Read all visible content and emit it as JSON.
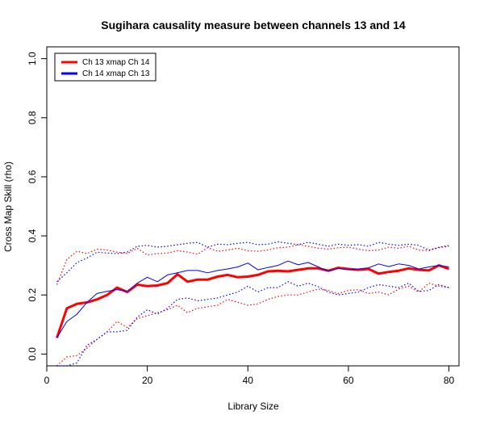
{
  "chart_data": {
    "type": "line",
    "title": "Sugihara causality measure between channels  13 and 14",
    "xlabel": "Library Size",
    "ylabel": "Cross Map Skill (rho)",
    "xlim": [
      0,
      82
    ],
    "ylim": [
      -0.04,
      1.04
    ],
    "xticks": [
      0,
      20,
      40,
      60,
      80
    ],
    "yticks": [
      0.0,
      0.2,
      0.4,
      0.6,
      0.8,
      1.0
    ],
    "grid": false,
    "legend": "top-left",
    "x": [
      2,
      4,
      6,
      8,
      10,
      12,
      14,
      16,
      18,
      20,
      22,
      24,
      26,
      28,
      30,
      32,
      34,
      36,
      38,
      40,
      42,
      44,
      46,
      48,
      50,
      52,
      54,
      56,
      58,
      60,
      62,
      64,
      66,
      68,
      70,
      72,
      74,
      76,
      78,
      80
    ],
    "series": [
      {
        "name": "Ch 13 xmap Ch 14",
        "color": "#ff0000",
        "role": "mean",
        "values": [
          0.055,
          0.155,
          0.17,
          0.175,
          0.185,
          0.2,
          0.225,
          0.21,
          0.235,
          0.23,
          0.232,
          0.24,
          0.27,
          0.245,
          0.252,
          0.252,
          0.262,
          0.268,
          0.26,
          0.262,
          0.268,
          0.28,
          0.282,
          0.28,
          0.285,
          0.29,
          0.29,
          0.282,
          0.292,
          0.288,
          0.285,
          0.288,
          0.272,
          0.278,
          0.282,
          0.29,
          0.285,
          0.283,
          0.3,
          0.288
        ]
      },
      {
        "name": "Ch 14  xmap Ch 13",
        "color": "#0000ff",
        "role": "mean",
        "values": [
          0.055,
          0.11,
          0.135,
          0.175,
          0.205,
          0.212,
          0.218,
          0.212,
          0.24,
          0.26,
          0.245,
          0.268,
          0.275,
          0.283,
          0.283,
          0.275,
          0.283,
          0.288,
          0.295,
          0.308,
          0.285,
          0.293,
          0.3,
          0.315,
          0.302,
          0.31,
          0.295,
          0.28,
          0.29,
          0.285,
          0.288,
          0.292,
          0.305,
          0.296,
          0.305,
          0.3,
          0.288,
          0.295,
          0.3,
          0.295
        ]
      },
      {
        "color": "#ff0000",
        "role": "upper",
        "values": [
          0.235,
          0.32,
          0.348,
          0.34,
          0.355,
          0.352,
          0.345,
          0.34,
          0.358,
          0.335,
          0.34,
          0.342,
          0.35,
          0.345,
          0.338,
          0.36,
          0.348,
          0.352,
          0.358,
          0.35,
          0.348,
          0.352,
          0.36,
          0.362,
          0.37,
          0.365,
          0.358,
          0.355,
          0.36,
          0.362,
          0.355,
          0.35,
          0.352,
          0.362,
          0.358,
          0.365,
          0.352,
          0.35,
          0.362,
          0.368
        ]
      },
      {
        "color": "#ff0000",
        "role": "lower",
        "values": [
          -0.06,
          -0.01,
          -0.005,
          0.02,
          0.05,
          0.075,
          0.11,
          0.09,
          0.12,
          0.13,
          0.14,
          0.15,
          0.165,
          0.14,
          0.155,
          0.16,
          0.165,
          0.185,
          0.175,
          0.165,
          0.17,
          0.185,
          0.195,
          0.2,
          0.2,
          0.21,
          0.22,
          0.215,
          0.205,
          0.215,
          0.218,
          0.205,
          0.21,
          0.2,
          0.22,
          0.23,
          0.21,
          0.24,
          0.23,
          0.225
        ]
      },
      {
        "color": "#0000ff",
        "role": "upper",
        "values": [
          0.245,
          0.275,
          0.31,
          0.325,
          0.345,
          0.342,
          0.34,
          0.345,
          0.365,
          0.368,
          0.362,
          0.365,
          0.37,
          0.375,
          0.378,
          0.362,
          0.372,
          0.37,
          0.375,
          0.378,
          0.37,
          0.372,
          0.38,
          0.375,
          0.37,
          0.378,
          0.372,
          0.365,
          0.372,
          0.368,
          0.37,
          0.365,
          0.378,
          0.372,
          0.368,
          0.372,
          0.368,
          0.352,
          0.36,
          0.365
        ]
      },
      {
        "color": "#0000ff",
        "role": "lower",
        "values": [
          -0.08,
          -0.06,
          -0.03,
          0.03,
          0.05,
          0.075,
          0.075,
          0.08,
          0.125,
          0.15,
          0.135,
          0.155,
          0.185,
          0.19,
          0.18,
          0.185,
          0.19,
          0.2,
          0.21,
          0.23,
          0.21,
          0.225,
          0.225,
          0.245,
          0.23,
          0.24,
          0.228,
          0.21,
          0.2,
          0.205,
          0.21,
          0.225,
          0.235,
          0.23,
          0.225,
          0.24,
          0.212,
          0.215,
          0.235,
          0.225
        ]
      }
    ]
  }
}
